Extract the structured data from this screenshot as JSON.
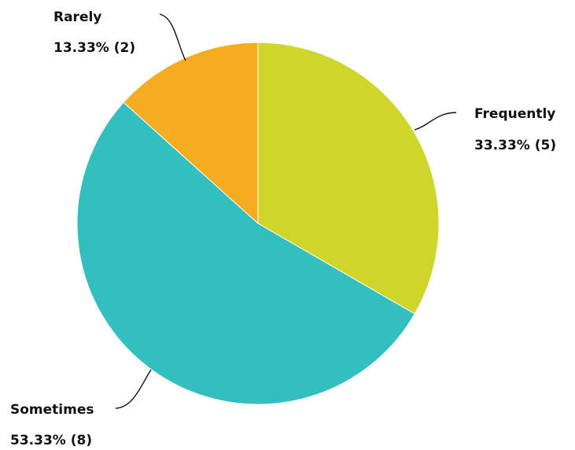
{
  "chart_data": {
    "type": "pie",
    "slices": [
      {
        "label": "Frequently",
        "value": 5,
        "percent": "33.33%",
        "display": "33.33% (5)",
        "color": "#cfd52a"
      },
      {
        "label": "Sometimes",
        "value": 8,
        "percent": "53.33%",
        "display": "53.33% (8)",
        "color": "#33bec0"
      },
      {
        "label": "Rarely",
        "value": 2,
        "percent": "13.33%",
        "display": "13.33% (2)",
        "color": "#f5ad1f"
      }
    ],
    "start_angle": "12 o'clock",
    "direction": "clockwise"
  }
}
